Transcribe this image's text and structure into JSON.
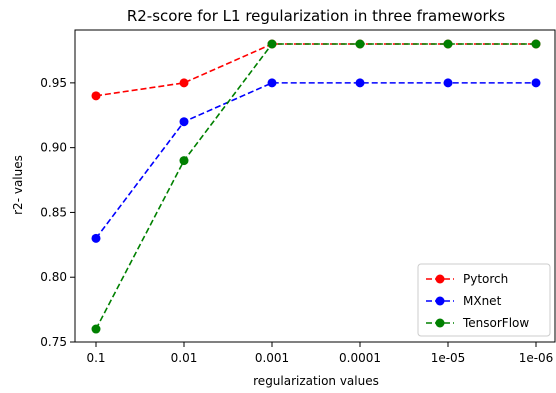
{
  "chart_data": {
    "type": "line",
    "title": "R2-score for L1 regularization in three frameworks",
    "xlabel": "regularization values",
    "ylabel": "r2- values",
    "categories": [
      "0.1",
      "0.01",
      "0.001",
      "0.0001",
      "1e-05",
      "1e-06"
    ],
    "ylim": [
      0.75,
      0.98
    ],
    "yticks": [
      "0.75",
      "0.80",
      "0.85",
      "0.90",
      "0.95"
    ],
    "grid": false,
    "legend_position": "lower-right",
    "series": [
      {
        "name": "Pytorch",
        "color": "#ff0000",
        "values": [
          0.94,
          0.95,
          0.98,
          0.98,
          0.98,
          0.98
        ]
      },
      {
        "name": "MXnet",
        "color": "#0000ff",
        "values": [
          0.83,
          0.92,
          0.95,
          0.95,
          0.95,
          0.95
        ]
      },
      {
        "name": "TensorFlow",
        "color": "#008000",
        "values": [
          0.76,
          0.89,
          0.98,
          0.98,
          0.98,
          0.98
        ]
      }
    ]
  }
}
